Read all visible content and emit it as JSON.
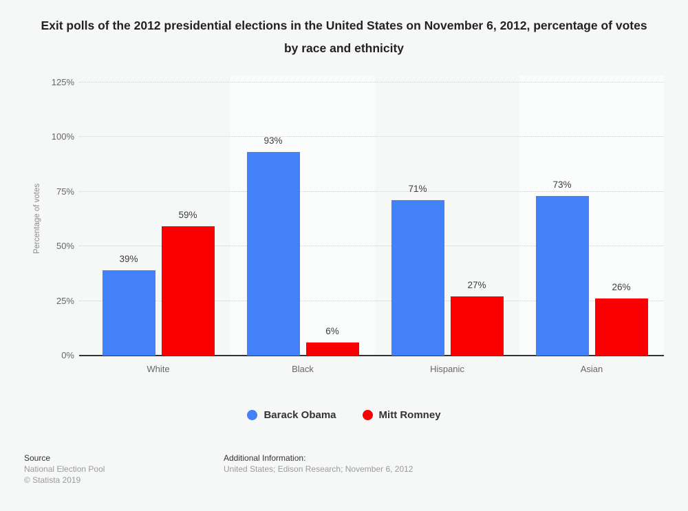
{
  "title": "Exit polls of the 2012 presidential elections in the United States on November 6, 2012, percentage of votes by race and ethnicity",
  "chart_data": {
    "type": "bar",
    "categories": [
      "White",
      "Black",
      "Hispanic",
      "Asian"
    ],
    "series": [
      {
        "name": "Barack Obama",
        "color": "#4281f8",
        "values": [
          39,
          93,
          71,
          73
        ]
      },
      {
        "name": "Mitt Romney",
        "color": "#fa0000",
        "values": [
          59,
          6,
          27,
          26
        ]
      }
    ],
    "value_suffix": "%",
    "ylabel": "Percentage of votes",
    "ylim": [
      0,
      125
    ],
    "yticks": [
      0,
      25,
      50,
      75,
      100,
      125
    ],
    "grid": "horizontal dotted",
    "legend_position": "bottom center",
    "value_labels": "above bars"
  },
  "footer": {
    "source_label": "Source",
    "source_name": "National Election Pool",
    "copyright": "© Statista 2019",
    "additional_label": "Additional Information:",
    "additional_text": "United States; Edison Research; November 6, 2012"
  }
}
